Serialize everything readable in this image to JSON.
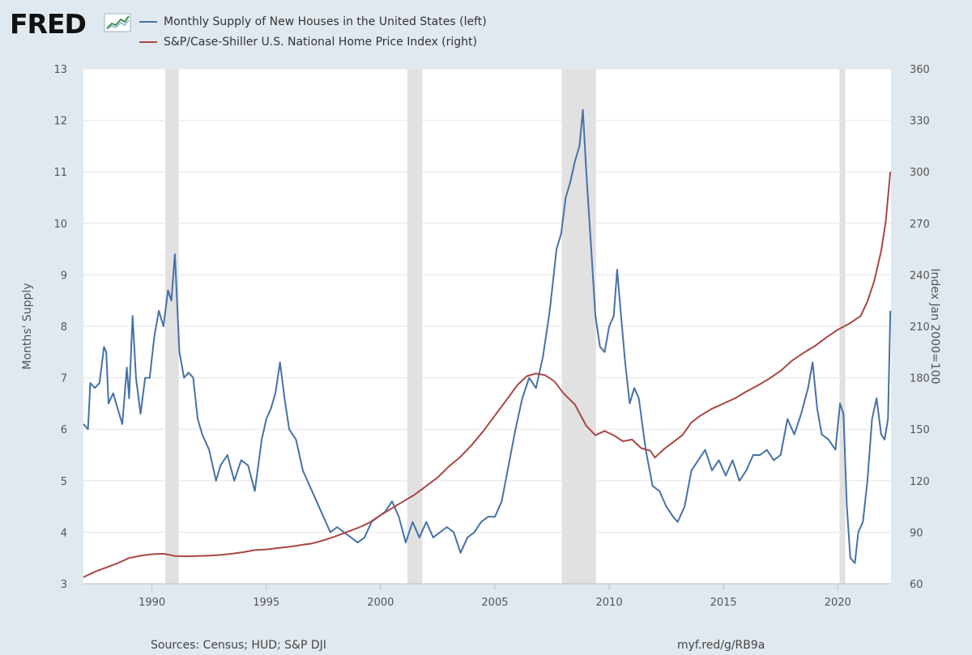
{
  "header": {
    "logo_text": "FRED",
    "legend": [
      {
        "label": "Monthly Supply of New Houses in the United States (left)",
        "color": "#4572a7"
      },
      {
        "label": "S&P/Case-Shiller U.S. National Home Price Index (right)",
        "color": "#aa4643"
      }
    ]
  },
  "footer": {
    "sources": "Sources: Census; HUD; S&P DJI",
    "url": "myf.red/g/RB9a"
  },
  "chart_data": {
    "type": "line",
    "title": "",
    "x_range": [
      1987.0,
      2022.33
    ],
    "x_ticks": [
      1990,
      1995,
      2000,
      2005,
      2010,
      2015,
      2020
    ],
    "x_tick_labels": [
      "1990",
      "1995",
      "2000",
      "2005",
      "2010",
      "2015",
      "2020"
    ],
    "left_axis": {
      "label": "Months' Supply",
      "range": [
        3,
        13
      ],
      "ticks": [
        3,
        4,
        5,
        6,
        7,
        8,
        9,
        10,
        11,
        12,
        13
      ],
      "tick_labels": [
        "3",
        "4",
        "5",
        "6",
        "7",
        "8",
        "9",
        "10",
        "11",
        "12",
        "13"
      ]
    },
    "right_axis": {
      "label": "Index Jan 2000=100",
      "range": [
        60,
        360
      ],
      "ticks": [
        60,
        90,
        120,
        150,
        180,
        210,
        240,
        270,
        300,
        330,
        360
      ],
      "tick_labels": [
        "60",
        "90",
        "120",
        "150",
        "180",
        "210",
        "240",
        "270",
        "300",
        "330",
        "360"
      ]
    },
    "grid": true,
    "recessions": [
      [
        1990.58,
        1991.17
      ],
      [
        2001.17,
        2001.83
      ],
      [
        2007.92,
        2009.42
      ],
      [
        2020.08,
        2020.33
      ]
    ],
    "series": [
      {
        "name": "Monthly Supply of New Houses in the United States",
        "axis": "left",
        "color": "#4572a7",
        "x": [
          1987.0,
          1987.2,
          1987.3,
          1987.5,
          1987.7,
          1987.9,
          1988.0,
          1988.1,
          1988.3,
          1988.5,
          1988.7,
          1988.9,
          1989.0,
          1989.15,
          1989.3,
          1989.5,
          1989.7,
          1989.9,
          1990.1,
          1990.3,
          1990.5,
          1990.7,
          1990.85,
          1991.0,
          1991.2,
          1991.4,
          1991.6,
          1991.8,
          1992.0,
          1992.2,
          1992.5,
          1992.8,
          1993.0,
          1993.3,
          1993.6,
          1993.9,
          1994.2,
          1994.5,
          1994.8,
          1995.0,
          1995.2,
          1995.4,
          1995.6,
          1995.8,
          1996.0,
          1996.3,
          1996.6,
          1996.9,
          1997.2,
          1997.5,
          1997.8,
          1998.1,
          1998.4,
          1998.7,
          1999.0,
          1999.3,
          1999.6,
          1999.9,
          2000.2,
          2000.5,
          2000.8,
          2001.1,
          2001.4,
          2001.7,
          2002.0,
          2002.3,
          2002.6,
          2002.9,
          2003.2,
          2003.5,
          2003.8,
          2004.1,
          2004.4,
          2004.7,
          2005.0,
          2005.3,
          2005.6,
          2005.9,
          2006.2,
          2006.5,
          2006.8,
          2007.1,
          2007.4,
          2007.7,
          2007.9,
          2008.1,
          2008.3,
          2008.5,
          2008.7,
          2008.85,
          2009.0,
          2009.2,
          2009.4,
          2009.6,
          2009.8,
          2010.0,
          2010.2,
          2010.35,
          2010.5,
          2010.7,
          2010.9,
          2011.1,
          2011.3,
          2011.6,
          2011.9,
          2012.2,
          2012.5,
          2012.8,
          2013.0,
          2013.3,
          2013.6,
          2013.9,
          2014.2,
          2014.5,
          2014.8,
          2015.1,
          2015.4,
          2015.7,
          2016.0,
          2016.3,
          2016.6,
          2016.9,
          2017.2,
          2017.5,
          2017.8,
          2018.1,
          2018.4,
          2018.7,
          2018.9,
          2019.1,
          2019.3,
          2019.6,
          2019.9,
          2020.1,
          2020.25,
          2020.4,
          2020.55,
          2020.75,
          2020.9,
          2021.1,
          2021.3,
          2021.5,
          2021.7,
          2021.9,
          2022.05,
          2022.2,
          2022.3
        ],
        "values": [
          6.1,
          6.0,
          6.9,
          6.8,
          6.9,
          7.6,
          7.5,
          6.5,
          6.7,
          6.4,
          6.1,
          7.2,
          6.6,
          8.2,
          7.0,
          6.3,
          7.0,
          7.0,
          7.8,
          8.3,
          8.0,
          8.7,
          8.5,
          9.4,
          7.5,
          7.0,
          7.1,
          7.0,
          6.2,
          5.9,
          5.6,
          5.0,
          5.3,
          5.5,
          5.0,
          5.4,
          5.3,
          4.8,
          5.8,
          6.2,
          6.4,
          6.7,
          7.3,
          6.6,
          6.0,
          5.8,
          5.2,
          4.9,
          4.6,
          4.3,
          4.0,
          4.1,
          4.0,
          3.9,
          3.8,
          3.9,
          4.2,
          4.3,
          4.4,
          4.6,
          4.3,
          3.8,
          4.2,
          3.9,
          4.2,
          3.9,
          4.0,
          4.1,
          4.0,
          3.6,
          3.9,
          4.0,
          4.2,
          4.3,
          4.3,
          4.6,
          5.3,
          6.0,
          6.6,
          7.0,
          6.8,
          7.4,
          8.3,
          9.5,
          9.8,
          10.5,
          10.8,
          11.2,
          11.5,
          12.2,
          11.0,
          9.6,
          8.2,
          7.6,
          7.5,
          8.0,
          8.2,
          9.1,
          8.3,
          7.3,
          6.5,
          6.8,
          6.6,
          5.6,
          4.9,
          4.8,
          4.5,
          4.3,
          4.2,
          4.5,
          5.2,
          5.4,
          5.6,
          5.2,
          5.4,
          5.1,
          5.4,
          5.0,
          5.2,
          5.5,
          5.5,
          5.6,
          5.4,
          5.5,
          6.2,
          5.9,
          6.3,
          6.8,
          7.3,
          6.4,
          5.9,
          5.8,
          5.6,
          6.5,
          6.3,
          4.5,
          3.5,
          3.4,
          4.0,
          4.2,
          5.0,
          6.2,
          6.6,
          5.9,
          5.8,
          6.2,
          8.3
        ]
      },
      {
        "name": "S&P/Case-Shiller U.S. National Home Price Index",
        "axis": "right",
        "color": "#aa4643",
        "x": [
          1987.0,
          1987.5,
          1988.0,
          1988.5,
          1989.0,
          1989.5,
          1990.0,
          1990.5,
          1991.0,
          1991.5,
          1992.0,
          1992.5,
          1993.0,
          1993.5,
          1994.0,
          1994.5,
          1995.0,
          1995.5,
          1996.0,
          1996.5,
          1997.0,
          1997.5,
          1998.0,
          1998.5,
          1999.0,
          1999.5,
          2000.0,
          2000.5,
          2001.0,
          2001.5,
          2002.0,
          2002.5,
          2003.0,
          2003.5,
          2004.0,
          2004.5,
          2005.0,
          2005.5,
          2006.0,
          2006.4,
          2006.8,
          2007.2,
          2007.6,
          2008.0,
          2008.5,
          2009.0,
          2009.4,
          2009.8,
          2010.2,
          2010.6,
          2011.0,
          2011.4,
          2011.8,
          2012.0,
          2012.4,
          2012.8,
          2013.2,
          2013.6,
          2014.0,
          2014.5,
          2015.0,
          2015.5,
          2016.0,
          2016.5,
          2017.0,
          2017.5,
          2018.0,
          2018.5,
          2019.0,
          2019.5,
          2020.0,
          2020.5,
          2021.0,
          2021.3,
          2021.6,
          2021.9,
          2022.1,
          2022.3
        ],
        "values": [
          63.8,
          67,
          69.5,
          72,
          75,
          76.3,
          77.2,
          77.5,
          76.2,
          76,
          76.2,
          76.4,
          76.8,
          77.5,
          78.4,
          79.6,
          80,
          80.8,
          81.5,
          82.5,
          83.5,
          85.3,
          87.5,
          90,
          92.5,
          95.5,
          100,
          104,
          108,
          112,
          117,
          122,
          128.5,
          134,
          141,
          149,
          158,
          167,
          176,
          181,
          182.5,
          181.5,
          178,
          171,
          164.5,
          152,
          146.5,
          149,
          146.5,
          143,
          144,
          139,
          137.5,
          133.5,
          138.5,
          142.5,
          146.5,
          154,
          158,
          162,
          165,
          168,
          172,
          175.5,
          179.5,
          184,
          190,
          194.5,
          198.5,
          203.5,
          208,
          211.5,
          216,
          224.5,
          236.5,
          254,
          271,
          300
        ]
      }
    ]
  }
}
